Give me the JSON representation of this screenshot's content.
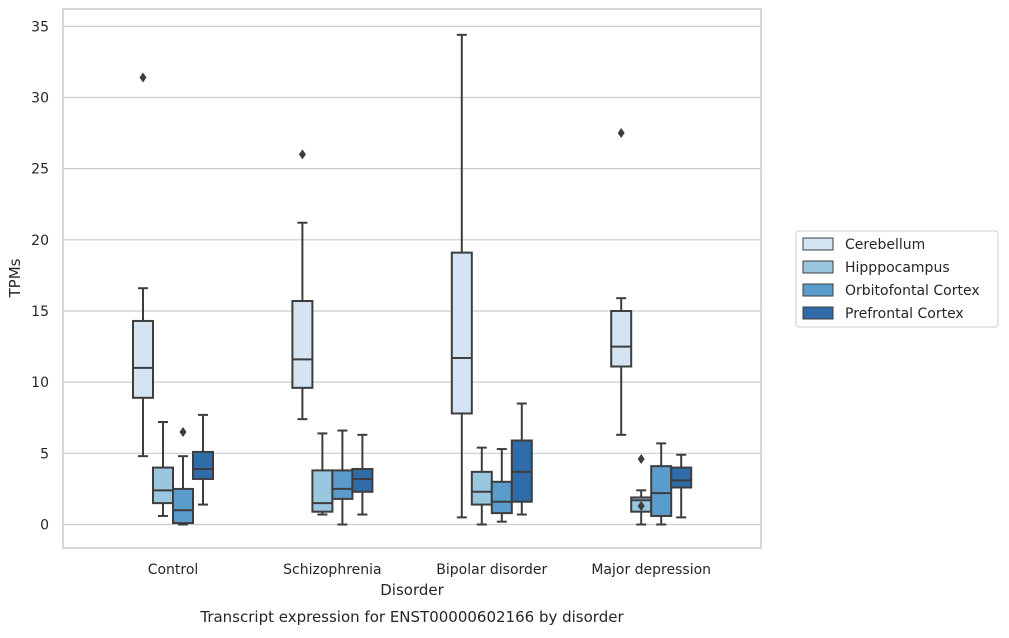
{
  "chart_data": {
    "type": "box",
    "title": "",
    "caption": "Transcript expression for ENST00000602166 by disorder",
    "xlabel": "Disorder",
    "ylabel": "TPMs",
    "ylim": [
      -1.7,
      36.2
    ],
    "yticks": [
      0,
      5,
      10,
      15,
      20,
      25,
      30,
      35
    ],
    "grid": "horizontal",
    "legend_position": "right",
    "categories": [
      "Control",
      "Schizophrenia",
      "Bipolar disorder",
      "Major depression"
    ],
    "series": [
      {
        "name": "Cerebellum",
        "color": "#d4e4f2",
        "boxes": [
          {
            "min": 4.8,
            "q1": 8.9,
            "median": 11.0,
            "q3": 14.3,
            "max": 16.6,
            "outliers": [
              31.4
            ]
          },
          {
            "min": 7.4,
            "q1": 9.6,
            "median": 11.6,
            "q3": 15.7,
            "max": 21.2,
            "outliers": [
              26.0
            ]
          },
          {
            "min": 0.5,
            "q1": 7.8,
            "median": 11.7,
            "q3": 19.1,
            "max": 34.4,
            "outliers": []
          },
          {
            "min": 6.3,
            "q1": 11.1,
            "median": 12.5,
            "q3": 15.0,
            "max": 15.9,
            "outliers": [
              27.5
            ]
          }
        ]
      },
      {
        "name": "Hipppocampus",
        "color": "#9ac7e0",
        "boxes": [
          {
            "min": 0.6,
            "q1": 1.5,
            "median": 2.4,
            "q3": 4.0,
            "max": 7.2,
            "outliers": []
          },
          {
            "min": 0.7,
            "q1": 0.9,
            "median": 1.5,
            "q3": 3.8,
            "max": 6.4,
            "outliers": []
          },
          {
            "min": 0.0,
            "q1": 1.4,
            "median": 2.3,
            "q3": 3.7,
            "max": 5.4,
            "outliers": []
          },
          {
            "min": 0.0,
            "q1": 0.9,
            "median": 1.7,
            "q3": 1.9,
            "max": 2.4,
            "outliers": [
              1.3,
              4.6
            ]
          }
        ]
      },
      {
        "name": "Orbitofontal Cortex",
        "color": "#5a9dcd",
        "boxes": [
          {
            "min": 0.0,
            "q1": 0.1,
            "median": 1.0,
            "q3": 2.5,
            "max": 4.8,
            "outliers": [
              6.5
            ]
          },
          {
            "min": 0.0,
            "q1": 1.8,
            "median": 2.5,
            "q3": 3.8,
            "max": 6.6,
            "outliers": []
          },
          {
            "min": 0.2,
            "q1": 0.8,
            "median": 1.6,
            "q3": 3.0,
            "max": 5.3,
            "outliers": []
          },
          {
            "min": 0.0,
            "q1": 0.6,
            "median": 2.2,
            "q3": 4.1,
            "max": 5.7,
            "outliers": []
          }
        ]
      },
      {
        "name": "Prefrontal Cortex",
        "color": "#2f6ca8",
        "boxes": [
          {
            "min": 1.4,
            "q1": 3.2,
            "median": 3.9,
            "q3": 5.1,
            "max": 7.7,
            "outliers": []
          },
          {
            "min": 0.7,
            "q1": 2.3,
            "median": 3.2,
            "q3": 3.9,
            "max": 6.3,
            "outliers": []
          },
          {
            "min": 0.7,
            "q1": 1.6,
            "median": 3.7,
            "q3": 5.9,
            "max": 8.5,
            "outliers": []
          },
          {
            "min": 0.5,
            "q1": 2.6,
            "median": 3.1,
            "q3": 4.0,
            "max": 4.9,
            "outliers": []
          }
        ]
      }
    ]
  }
}
